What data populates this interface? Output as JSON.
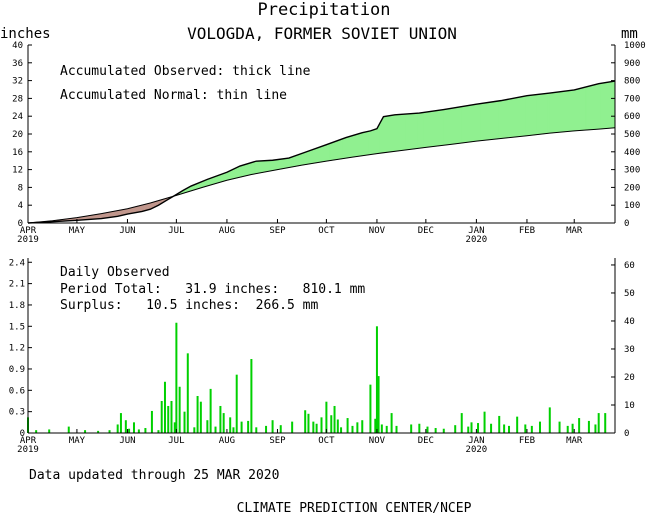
{
  "header": {
    "title": "Precipitation",
    "station": "VOLOGDA, FORMER SOVIET UNION",
    "unit_left": "inches",
    "unit_right": "mm"
  },
  "footer": {
    "updated": "Data updated through 25 MAR 2020",
    "credit": "CLIMATE PREDICTION CENTER/NCEP"
  },
  "colors": {
    "surplus": "#90f090",
    "deficit": "#c0968c",
    "daily_bar": "#00d000",
    "axis": "#000000"
  },
  "chart_data": [
    {
      "type": "line",
      "x_ticks": [
        {
          "label": "APR",
          "year": "2019",
          "day": 0
        },
        {
          "label": "MAY",
          "year": "",
          "day": 30
        },
        {
          "label": "JUN",
          "year": "",
          "day": 61
        },
        {
          "label": "JUL",
          "year": "",
          "day": 91
        },
        {
          "label": "AUG",
          "year": "",
          "day": 122
        },
        {
          "label": "SEP",
          "year": "",
          "day": 153
        },
        {
          "label": "OCT",
          "year": "",
          "day": 183
        },
        {
          "label": "NOV",
          "year": "",
          "day": 214
        },
        {
          "label": "DEC",
          "year": "",
          "day": 244
        },
        {
          "label": "JAN",
          "year": "2020",
          "day": 275
        },
        {
          "label": "FEB",
          "year": "",
          "day": 306
        },
        {
          "label": "MAR",
          "year": "",
          "day": 335
        }
      ],
      "xlim": [
        0,
        360
      ],
      "ylim": [
        0,
        40
      ],
      "y_ticks": [
        0,
        4,
        8,
        12,
        16,
        20,
        24,
        28,
        32,
        36,
        40
      ],
      "ylim_right": [
        0,
        1000
      ],
      "y_ticks_right": [
        0,
        100,
        200,
        300,
        400,
        500,
        600,
        700,
        800,
        900,
        1000
      ],
      "annotations": [
        "Accumulated Observed: thick line",
        "Accumulated Normal: thin line"
      ],
      "series": [
        {
          "style": "thick",
          "x": [
            0,
            15,
            30,
            45,
            55,
            61,
            70,
            75,
            80,
            85,
            91,
            95,
            100,
            110,
            122,
            130,
            140,
            150,
            160,
            170,
            183,
            195,
            205,
            210,
            214,
            218,
            225,
            240,
            255,
            275,
            290,
            306,
            320,
            335,
            350,
            360
          ],
          "y": [
            0,
            0.3,
            0.6,
            1.0,
            1.5,
            2.0,
            2.6,
            3.1,
            4.0,
            5.1,
            6.4,
            7.3,
            8.3,
            9.8,
            11.4,
            12.8,
            13.9,
            14.1,
            14.6,
            15.9,
            17.6,
            19.2,
            20.3,
            20.7,
            21.2,
            23.9,
            24.3,
            24.7,
            25.5,
            26.7,
            27.5,
            28.6,
            29.2,
            29.9,
            31.3,
            31.9
          ]
        },
        {
          "style": "thin",
          "x": [
            0,
            15,
            30,
            45,
            61,
            75,
            91,
            107,
            122,
            137,
            153,
            168,
            183,
            199,
            214,
            229,
            244,
            260,
            275,
            290,
            306,
            320,
            335,
            350,
            360
          ],
          "y": [
            0,
            0.5,
            1.2,
            2.1,
            3.2,
            4.5,
            6.2,
            8.0,
            9.6,
            10.9,
            12.0,
            13.0,
            13.9,
            14.8,
            15.6,
            16.3,
            17.0,
            17.7,
            18.4,
            19.0,
            19.6,
            20.2,
            20.7,
            21.1,
            21.4
          ]
        }
      ]
    },
    {
      "type": "bar",
      "annotations": [
        "Daily Observed",
        "Period Total:   31.9 inches:   810.1 mm",
        "Surplus:   10.5 inches:  266.5 mm"
      ],
      "xlim": [
        0,
        360
      ],
      "ylim": [
        0,
        2.46
      ],
      "y_ticks": [
        "0",
        "0.3",
        "0.6",
        "0.9",
        "1.2",
        "1.5",
        "1.8",
        "2.1",
        "2.4"
      ],
      "y_tick_values": [
        0,
        0.3,
        0.6,
        0.9,
        1.2,
        1.5,
        1.8,
        2.1,
        2.4
      ],
      "y_ticks_right": [
        0,
        10,
        20,
        30,
        40,
        50,
        60
      ],
      "mm_per_inch": 25.4,
      "x": [
        0,
        5,
        13,
        25,
        35,
        43,
        50,
        55,
        57,
        60,
        62,
        65,
        68,
        72,
        76,
        80,
        82,
        84,
        86,
        88,
        90,
        91,
        93,
        96,
        98,
        102,
        104,
        106,
        110,
        112,
        115,
        118,
        120,
        124,
        126,
        128,
        131,
        135,
        137,
        140,
        146,
        150,
        155,
        162,
        170,
        172,
        175,
        177,
        180,
        183,
        186,
        188,
        190,
        192,
        196,
        199,
        202,
        205,
        210,
        213,
        214,
        215,
        217,
        220,
        223,
        226,
        235,
        240,
        245,
        250,
        255,
        262,
        266,
        270,
        272,
        276,
        280,
        284,
        289,
        292,
        295,
        300,
        305,
        309,
        314,
        320,
        326,
        331,
        334,
        338,
        344,
        348,
        350,
        354
      ],
      "y": [
        0.22,
        0.04,
        0.05,
        0.09,
        0.04,
        0.03,
        0.04,
        0.12,
        0.28,
        0.18,
        0.06,
        0.15,
        0.05,
        0.07,
        0.31,
        0.04,
        0.45,
        0.72,
        0.38,
        0.45,
        0.15,
        1.55,
        0.65,
        0.3,
        1.12,
        0.08,
        0.52,
        0.44,
        0.18,
        0.62,
        0.09,
        0.38,
        0.28,
        0.22,
        0.08,
        0.82,
        0.16,
        0.17,
        1.04,
        0.08,
        0.1,
        0.18,
        0.11,
        0.16,
        0.32,
        0.27,
        0.16,
        0.13,
        0.22,
        0.44,
        0.25,
        0.38,
        0.19,
        0.08,
        0.21,
        0.1,
        0.15,
        0.18,
        0.68,
        0.2,
        1.5,
        0.8,
        0.12,
        0.1,
        0.28,
        0.1,
        0.12,
        0.13,
        0.09,
        0.07,
        0.06,
        0.11,
        0.28,
        0.09,
        0.15,
        0.14,
        0.3,
        0.13,
        0.24,
        0.12,
        0.1,
        0.23,
        0.12,
        0.1,
        0.16,
        0.36,
        0.16,
        0.1,
        0.13,
        0.21,
        0.17,
        0.12,
        0.28,
        0.28
      ]
    }
  ]
}
